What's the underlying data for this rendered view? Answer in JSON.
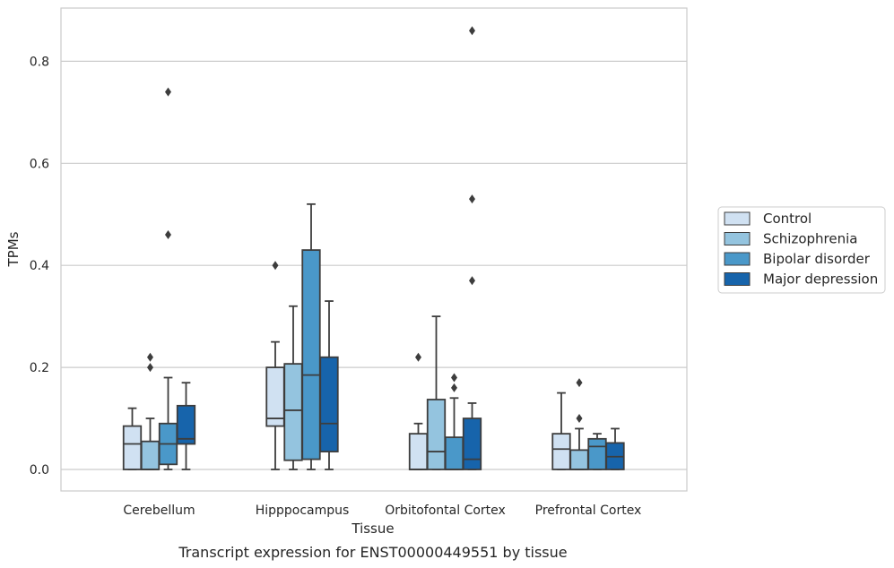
{
  "caption": "Transcript expression for ENST00000449551 by tissue",
  "chart_data": {
    "type": "box",
    "xlabel": "Tissue",
    "ylabel": "TPMs",
    "ylim": [
      -0.042,
      0.905
    ],
    "yticks": [
      0.0,
      0.2,
      0.4,
      0.6,
      0.8
    ],
    "ytick_labels": [
      "0.0",
      "0.2",
      "0.4",
      "0.6",
      "0.8"
    ],
    "grid": "horizontal",
    "legend_position": "right",
    "categories": [
      "Cerebellum",
      "Hipppocampus",
      "Orbitofontal Cortex",
      "Prefrontal Cortex"
    ],
    "series": [
      {
        "name": "Control",
        "color": "#d0e1f2",
        "boxes": [
          {
            "whislo": 0.0,
            "q1": 0.0,
            "med": 0.05,
            "q3": 0.085,
            "whishi": 0.12,
            "fliers": []
          },
          {
            "whislo": 0.0,
            "q1": 0.085,
            "med": 0.1,
            "q3": 0.2,
            "whishi": 0.25,
            "fliers": [
              0.4
            ]
          },
          {
            "whislo": 0.0,
            "q1": 0.0,
            "med": 0.0,
            "q3": 0.07,
            "whishi": 0.09,
            "fliers": [
              0.22
            ]
          },
          {
            "whislo": 0.0,
            "q1": 0.0,
            "med": 0.04,
            "q3": 0.07,
            "whishi": 0.15,
            "fliers": []
          }
        ]
      },
      {
        "name": "Schizophrenia",
        "color": "#94c4df",
        "boxes": [
          {
            "whislo": 0.0,
            "q1": 0.0,
            "med": 0.0,
            "q3": 0.055,
            "whishi": 0.1,
            "fliers": [
              0.2,
              0.22
            ]
          },
          {
            "whislo": 0.0,
            "q1": 0.018,
            "med": 0.116,
            "q3": 0.207,
            "whishi": 0.32,
            "fliers": []
          },
          {
            "whislo": 0.0,
            "q1": 0.0,
            "med": 0.035,
            "q3": 0.137,
            "whishi": 0.3,
            "fliers": []
          },
          {
            "whislo": 0.0,
            "q1": 0.0,
            "med": 0.0,
            "q3": 0.038,
            "whishi": 0.08,
            "fliers": [
              0.1,
              0.17
            ]
          }
        ]
      },
      {
        "name": "Bipolar disorder",
        "color": "#4a98c9",
        "boxes": [
          {
            "whislo": 0.0,
            "q1": 0.01,
            "med": 0.05,
            "q3": 0.09,
            "whishi": 0.18,
            "fliers": [
              0.46,
              0.74
            ]
          },
          {
            "whislo": 0.0,
            "q1": 0.02,
            "med": 0.185,
            "q3": 0.43,
            "whishi": 0.52,
            "fliers": []
          },
          {
            "whislo": 0.0,
            "q1": 0.0,
            "med": 0.0,
            "q3": 0.063,
            "whishi": 0.14,
            "fliers": [
              0.16,
              0.18
            ]
          },
          {
            "whislo": 0.0,
            "q1": 0.0,
            "med": 0.045,
            "q3": 0.06,
            "whishi": 0.07,
            "fliers": []
          }
        ]
      },
      {
        "name": "Major depression",
        "color": "#1764ab",
        "boxes": [
          {
            "whislo": 0.0,
            "q1": 0.05,
            "med": 0.06,
            "q3": 0.125,
            "whishi": 0.17,
            "fliers": []
          },
          {
            "whislo": 0.0,
            "q1": 0.035,
            "med": 0.09,
            "q3": 0.22,
            "whishi": 0.33,
            "fliers": []
          },
          {
            "whislo": 0.0,
            "q1": 0.0,
            "med": 0.02,
            "q3": 0.1,
            "whishi": 0.13,
            "fliers": [
              0.37,
              0.53,
              0.86
            ]
          },
          {
            "whislo": 0.0,
            "q1": 0.0,
            "med": 0.025,
            "q3": 0.052,
            "whishi": 0.08,
            "fliers": []
          }
        ]
      }
    ]
  }
}
